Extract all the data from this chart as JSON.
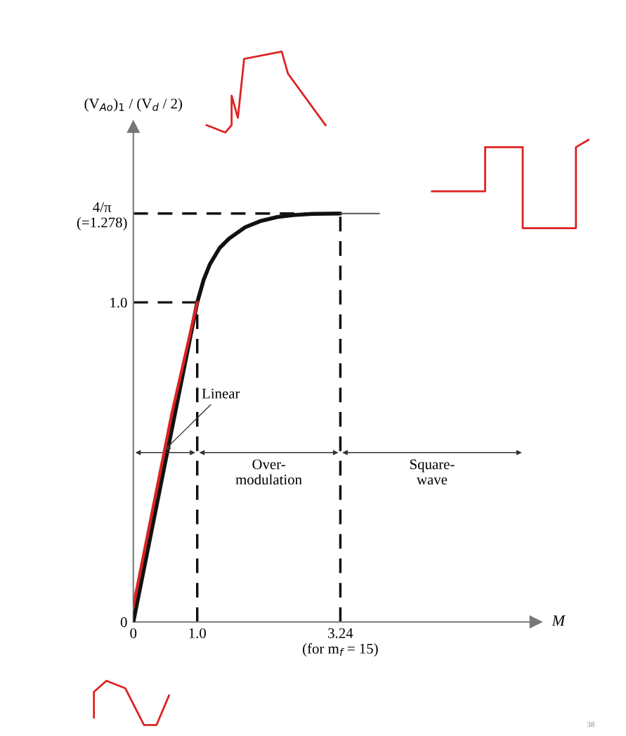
{
  "chart_data": {
    "type": "line",
    "xlabel": "M",
    "ylabel": "(V$_{Ao}$)$_{1}$ / (V$_{d}$ / 2)",
    "xlim": [
      0,
      6.3
    ],
    "ylim": [
      0,
      1.55
    ],
    "xticks": [
      0,
      {
        "value": 1.0,
        "label": "1.0"
      },
      {
        "value": 3.24,
        "label": "3.24\n(for m$_{f}$ = 15)"
      }
    ],
    "yticks": [
      0,
      {
        "value": 1.0,
        "label": "1.0"
      },
      {
        "value": 1.278,
        "label": "4/π\n(=1.278)"
      }
    ],
    "series": [
      {
        "color": "#111111",
        "x": [
          0,
          1.0,
          1.1,
          1.2,
          1.35,
          1.5,
          1.75,
          2.0,
          2.25,
          2.5,
          2.8,
          3.24
        ],
        "values": [
          0,
          1.0,
          1.07,
          1.12,
          1.17,
          1.2,
          1.235,
          1.255,
          1.267,
          1.273,
          1.277,
          1.278
        ]
      },
      {
        "color": "#555555",
        "x": [
          3.24,
          3.85
        ],
        "values": [
          1.278,
          1.278
        ]
      },
      {
        "color": "#dd2222",
        "x": [
          0,
          0.3,
          0.6,
          1.0
        ],
        "values": [
          0.05,
          0.35,
          0.65,
          1.0
        ]
      }
    ],
    "ref_lines": [
      {
        "axis": "y",
        "value": 1.0,
        "color": "#111111",
        "line_style": "dashed"
      },
      {
        "axis": "y",
        "value": 1.278,
        "color": "#111111",
        "line_style": "dashed"
      },
      {
        "axis": "x",
        "value": 1.0,
        "color": "#111111",
        "line_style": "dashed"
      },
      {
        "axis": "x",
        "value": 3.24,
        "color": "#111111",
        "line_style": "dashed"
      }
    ],
    "annotations": [
      {
        "text": "Linear",
        "x": 0.45,
        "y": 0.53
      },
      "Over-\nmodulation",
      "Square-\nwave",
      "38"
    ]
  }
}
